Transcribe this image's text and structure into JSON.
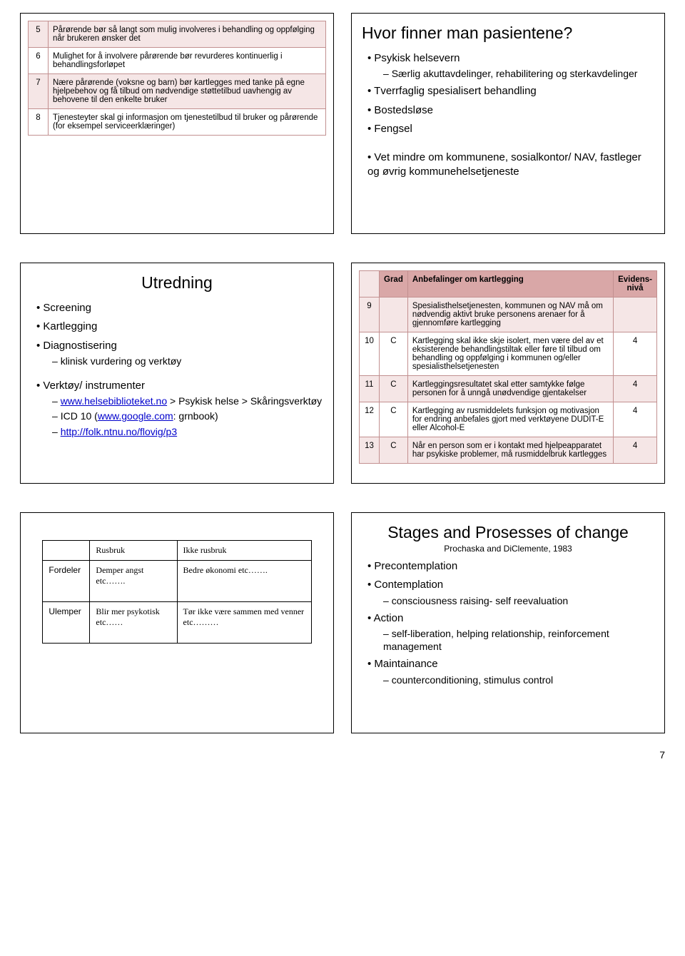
{
  "slide1": {
    "rows": [
      {
        "n": "5",
        "text": "Pårørende bør så langt som mulig involveres i behandling og oppfølging når brukeren ønsker det"
      },
      {
        "n": "6",
        "text": "Mulighet for å involvere pårørende bør revurderes kontinuerlig i behandlingsforløpet"
      },
      {
        "n": "7",
        "text": "Nære pårørende (voksne og barn) bør kartlegges med tanke på egne hjelpebehov og få tilbud om nødvendige støttetilbud uavhengig av behovene til den enkelte bruker"
      },
      {
        "n": "8",
        "text": "Tjenesteyter skal gi informasjon om tjenestetilbud til bruker og pårørende (for eksempel serviceerklæringer)"
      }
    ]
  },
  "slide2": {
    "title": "Hvor finner man pasientene?",
    "items": [
      {
        "text": "Psykisk helsevern",
        "sub": [
          "Særlig akuttavdelinger, rehabilitering og sterkavdelinger"
        ]
      },
      {
        "text": "Tverrfaglig spesialisert behandling"
      },
      {
        "text": "Bostedsløse"
      },
      {
        "text": "Fengsel"
      }
    ],
    "items2": [
      {
        "text": "Vet mindre om kommunene, sosialkontor/ NAV, fastleger og øvrig kommunehelsetjeneste"
      }
    ]
  },
  "slide3": {
    "title": "Utredning",
    "items": [
      {
        "text": "Screening"
      },
      {
        "text": "Kartlegging"
      },
      {
        "text": "Diagnostisering",
        "sub": [
          "klinisk vurdering og verktøy"
        ]
      }
    ],
    "items2": [
      {
        "text": "Verktøy/ instrumenter",
        "sub": [
          {
            "link": "www.helsebiblioteket.no",
            "after": " > Psykisk helse > Skåringsverktøy"
          },
          {
            "plain_before": "ICD 10 (",
            "link": "www.google.com",
            "after": ": grnbook)"
          },
          {
            "link": "http://folk.ntnu.no/flovig/p3"
          }
        ]
      }
    ]
  },
  "slide4": {
    "header": {
      "grad": "Grad",
      "anb": "Anbefalinger om kartlegging",
      "ev": "Evidens-nivå"
    },
    "rows": [
      {
        "n": "9",
        "g": "",
        "text": "Spesialisthelsetjenesten, kommunen og NAV må om nødvendig aktivt bruke personens arenaer for å gjennomføre kartlegging",
        "ev": ""
      },
      {
        "n": "10",
        "g": "C",
        "text": "Kartlegging skal ikke skje isolert, men være del av et eksisterende behandlingstiltak eller føre til tilbud om behandling og oppfølging i kommunen og/eller spesialisthelsetjenesten",
        "ev": "4"
      },
      {
        "n": "11",
        "g": "C",
        "text": "Kartleggingsresultatet skal etter samtykke følge personen for å unngå unødvendige gjentakelser",
        "ev": "4"
      },
      {
        "n": "12",
        "g": "C",
        "text": "Kartlegging av rusmiddelets funksjon og motivasjon for endring anbefales gjort med verktøyene DUDIT-E eller Alcohol-E",
        "ev": "4"
      },
      {
        "n": "13",
        "g": "C",
        "text": "Når en person som er i kontakt med hjelpeapparatet har psykiske problemer, må rusmiddelbruk kartlegges",
        "ev": "4"
      }
    ]
  },
  "slide5": {
    "headers": [
      "",
      "Rusbruk",
      "Ikke rusbruk"
    ],
    "rows": [
      {
        "label": "Fordeler",
        "a": "Demper angst etc…….",
        "b": "Bedre økonomi etc……."
      },
      {
        "label": "Ulemper",
        "a": "Blir mer psykotisk etc……",
        "b": "Tør ikke være sammen med venner etc………"
      }
    ]
  },
  "slide6": {
    "title": "Stages and Prosesses of change",
    "subtitle": "Prochaska and DiClemente, 1983",
    "items": [
      {
        "text": "Precontemplation"
      },
      {
        "text": "Contemplation",
        "sub": [
          "consciousness raising- self reevaluation"
        ]
      },
      {
        "text": "Action",
        "sub": [
          "self-liberation, helping relationship, reinforcement management"
        ]
      },
      {
        "text": "Maintainance",
        "sub": [
          "counterconditioning, stimulus control"
        ]
      }
    ]
  },
  "page_number": "7"
}
